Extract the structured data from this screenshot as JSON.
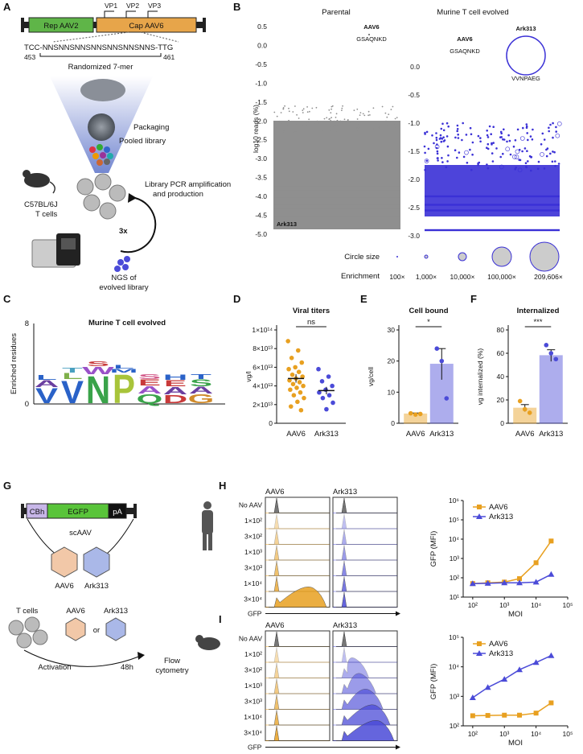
{
  "panels": {
    "a": "A",
    "b": "B",
    "c": "C",
    "d": "D",
    "e": "E",
    "f": "F",
    "g": "G",
    "h": "H",
    "i": "I"
  },
  "panel_a": {
    "rep": "Rep AAV2",
    "cap": "Cap AAV6",
    "vp": [
      "VP1",
      "VP2",
      "VP3"
    ],
    "seq": "TCC-NNSNNSNNSNNSNNSNNSNNS-TTG",
    "pos_start": "453",
    "pos_end": "461",
    "randomized": "Randomized 7-mer",
    "packaging": "Packaging",
    "pooled": "Pooled library",
    "pcr1": "Library PCR amplification",
    "pcr2": "and production",
    "cells1": "C57BL/6J",
    "cells2": "T cells",
    "cycles": "3x",
    "ngs1": "NGS of",
    "ngs2": "evolved library"
  },
  "panel_b": {
    "left_title": "Parental",
    "right_title": "Murine T cell evolved",
    "ylabel": "log10 reads (%)",
    "yticks": [
      "0.5",
      "0.0",
      "-0.5",
      "-1.0",
      "-1.5",
      "-2.0",
      "-2.5",
      "-3.0",
      "-3.5",
      "-4.0",
      "-4.5",
      "-5.0"
    ],
    "ryticks": [
      "0.0",
      "-0.5",
      "-1.0",
      "-1.5",
      "-2.0",
      "-2.5",
      "-3.0"
    ],
    "aav6_label": "AAV6",
    "aav6_seq": "GSAQNKD",
    "ark_label": "Ark313",
    "ark_seq": "VVNPAEG",
    "circle_size_label": "Circle size",
    "enrichment_label": "Enrichment",
    "enrichment_values": [
      "100×",
      "1,000×",
      "10,000×",
      "100,000×",
      "209,606×"
    ]
  },
  "panel_c": {
    "title": "Murine T cell evolved",
    "ylabel": "Enriched residues",
    "ymax": "8",
    "ymin": "0",
    "letters": [
      "V",
      "V",
      "N",
      "P",
      "Q",
      "D",
      "G"
    ]
  },
  "chart_data": [
    {
      "type": "scatter",
      "panel": "D",
      "title": "Viral titers",
      "ylabel": "vg/l",
      "yticks": [
        "0",
        "2×10^13",
        "4×10^13",
        "6×10^13",
        "8×10^13",
        "1×10^14"
      ],
      "ylim": [
        0,
        100000000000000.0
      ],
      "categories": [
        "AAV6",
        "Ark313"
      ],
      "means": [
        48000000000000.0,
        35000000000000.0
      ],
      "sem": [
        4500000000000.0,
        4000000000000.0
      ],
      "significance": "ns",
      "points": {
        "AAV6": [
          88000000000000.0,
          78000000000000.0,
          70000000000000.0,
          65000000000000.0,
          60000000000000.0,
          58000000000000.0,
          55000000000000.0,
          52000000000000.0,
          50000000000000.0,
          48000000000000.0,
          46000000000000.0,
          44000000000000.0,
          42000000000000.0,
          40000000000000.0,
          38000000000000.0,
          36000000000000.0,
          33000000000000.0,
          30000000000000.0,
          27000000000000.0,
          23000000000000.0,
          18000000000000.0,
          14000000000000.0
        ],
        "Ark313": [
          58000000000000.0,
          50000000000000.0,
          45000000000000.0,
          40000000000000.0,
          36000000000000.0,
          33000000000000.0,
          30000000000000.0,
          27000000000000.0,
          22000000000000.0,
          15000000000000.0
        ]
      }
    },
    {
      "type": "bar",
      "panel": "E",
      "title": "Cell bound",
      "ylabel": "vg/cell",
      "yticks": [
        "0",
        "10",
        "20",
        "30"
      ],
      "ylim": [
        0,
        30
      ],
      "categories": [
        "AAV6",
        "Ark313"
      ],
      "values": [
        3,
        19
      ],
      "sem": [
        0.3,
        5
      ],
      "points": {
        "AAV6": [
          3.2,
          2.8,
          3.0
        ],
        "Ark313": [
          24,
          20,
          8
        ]
      },
      "significance": "*"
    },
    {
      "type": "bar",
      "panel": "F",
      "title": "Internalized",
      "ylabel": "vg internalized (%)",
      "yticks": [
        "0",
        "20",
        "40",
        "60",
        "80"
      ],
      "ylim": [
        0,
        80
      ],
      "categories": [
        "AAV6",
        "Ark313"
      ],
      "values": [
        13,
        58
      ],
      "sem": [
        3,
        5
      ],
      "points": {
        "AAV6": [
          19,
          12,
          9
        ],
        "Ark313": [
          67,
          60,
          55
        ]
      },
      "significance": "***"
    },
    {
      "type": "line",
      "panel": "H",
      "xlabel": "MOI",
      "ylabel": "GFP (MFI)",
      "xticks": [
        "10^2",
        "10^3",
        "10^4",
        "10^5"
      ],
      "yticks": [
        "10^1",
        "10^2",
        "10^3",
        "10^4",
        "10^5",
        "10^6"
      ],
      "xlim": [
        50,
        100000
      ],
      "ylim": [
        10,
        1000000
      ],
      "x": [
        100,
        300,
        1000,
        3000,
        10000,
        30000
      ],
      "series": [
        {
          "name": "AAV6",
          "color": "#e8a020",
          "marker": "square",
          "values": [
            50,
            55,
            60,
            90,
            600,
            8000
          ]
        },
        {
          "name": "Ark313",
          "color": "#4b4bd8",
          "marker": "triangle",
          "values": [
            50,
            52,
            55,
            55,
            60,
            150
          ]
        }
      ]
    },
    {
      "type": "line",
      "panel": "I",
      "xlabel": "MOI",
      "ylabel": "GFP (MFI)",
      "xticks": [
        "10^2",
        "10^3",
        "10^4",
        "10^5"
      ],
      "yticks": [
        "10^2",
        "10^3",
        "10^4",
        "10^5"
      ],
      "xlim": [
        50,
        100000
      ],
      "ylim": [
        100,
        100000
      ],
      "x": [
        100,
        300,
        1000,
        3000,
        10000,
        30000
      ],
      "series": [
        {
          "name": "AAV6",
          "color": "#e8a020",
          "marker": "square",
          "values": [
            220,
            225,
            230,
            230,
            270,
            600
          ]
        },
        {
          "name": "Ark313",
          "color": "#4b4bd8",
          "marker": "triangle",
          "values": [
            900,
            2000,
            3800,
            8000,
            14000,
            24000
          ]
        }
      ]
    }
  ],
  "panel_g": {
    "promoter": "CBh",
    "egfp": "EGFP",
    "pa": "pA",
    "scaav": "scAAV",
    "aav6": "AAV6",
    "ark313": "Ark313",
    "tcells": "T cells",
    "or": "or",
    "activation": "Activation",
    "time": "48h",
    "flow1": "Flow",
    "flow2": "cytometry"
  },
  "flow": {
    "col1": "AAV6",
    "col2": "Ark313",
    "rows": [
      "No AAV",
      "1×10²",
      "3×10²",
      "1×10³",
      "3×10³",
      "1×10⁴",
      "3×10⁴"
    ],
    "xlabel": "GFP"
  },
  "colors": {
    "aav6": "#e8a020",
    "ark313": "#4b4bd8",
    "parental_gray": "#8a8a8a",
    "logo_green": "#3aa34a"
  }
}
